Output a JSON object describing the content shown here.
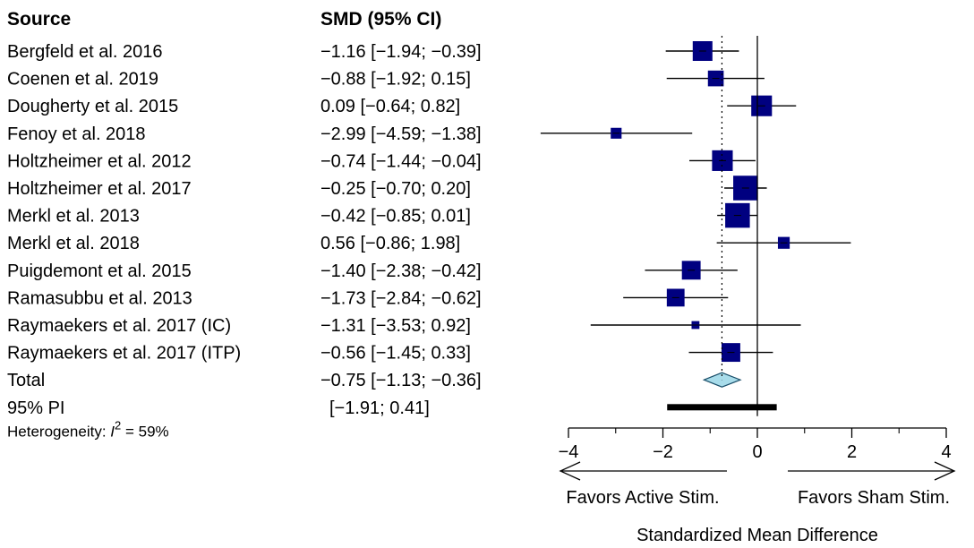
{
  "chart_data": {
    "type": "forest",
    "headers": {
      "study": "Source",
      "estimate": "SMD (95% CI)"
    },
    "studies": [
      {
        "label": "Bergfeld et al. 2016",
        "est": -1.16,
        "lo": -1.94,
        "hi": -0.39,
        "text": "−1.16 [−1.94; −0.39]",
        "weight": 1.0
      },
      {
        "label": "Coenen et al. 2019",
        "est": -0.88,
        "lo": -1.92,
        "hi": 0.15,
        "text": "−0.88 [−1.92;  0.15]",
        "weight": 0.8
      },
      {
        "label": "Dougherty et al. 2015",
        "est": 0.09,
        "lo": -0.64,
        "hi": 0.82,
        "text": "0.09 [−0.64;  0.82]",
        "weight": 1.05
      },
      {
        "label": "Fenoy et al. 2018",
        "est": -2.99,
        "lo": -4.59,
        "hi": -1.38,
        "text": "−2.99 [−4.59; −1.38]",
        "weight": 0.55
      },
      {
        "label": "Holtzheimer et al. 2012",
        "est": -0.74,
        "lo": -1.44,
        "hi": -0.04,
        "text": "−0.74 [−1.44; −0.04]",
        "weight": 1.05
      },
      {
        "label": "Holtzheimer et al. 2017",
        "est": -0.25,
        "lo": -0.7,
        "hi": 0.2,
        "text": "−0.25 [−0.70;  0.20]",
        "weight": 1.25
      },
      {
        "label": "Merkl et al. 2013",
        "est": -0.42,
        "lo": -0.85,
        "hi": 0.01,
        "text": "−0.42 [−0.85;  0.01]",
        "weight": 1.25
      },
      {
        "label": "Merkl et al. 2018",
        "est": 0.56,
        "lo": -0.86,
        "hi": 1.98,
        "text": "0.56 [−0.86;  1.98]",
        "weight": 0.6
      },
      {
        "label": "Puigdemont et al. 2015",
        "est": -1.4,
        "lo": -2.38,
        "hi": -0.42,
        "text": "−1.40 [−2.38; −0.42]",
        "weight": 0.95
      },
      {
        "label": "Ramasubbu et al. 2013",
        "est": -1.73,
        "lo": -2.84,
        "hi": -0.62,
        "text": "−1.73 [−2.84; −0.62]",
        "weight": 0.9
      },
      {
        "label": "Raymaekers et al. 2017 (IC)",
        "est": -1.31,
        "lo": -3.53,
        "hi": 0.92,
        "text": "−1.31 [−3.53;  0.92]",
        "weight": 0.4
      },
      {
        "label": "Raymaekers et al. 2017 (ITP)",
        "est": -0.56,
        "lo": -1.45,
        "hi": 0.33,
        "text": "−0.56 [−1.45;  0.33]",
        "weight": 0.95
      }
    ],
    "total": {
      "label": "Total",
      "est": -0.75,
      "lo": -1.13,
      "hi": -0.36,
      "text": "−0.75 [−1.13; −0.36]"
    },
    "prediction_interval": {
      "label": "95% PI",
      "lo": -1.91,
      "hi": 0.41,
      "text": "[−1.91;  0.41]"
    },
    "heterogeneity": {
      "prefix": "Heterogeneity: ",
      "symbol": "I",
      "superscript": "2",
      "suffix": " = 59%"
    },
    "x_axis": {
      "range": [
        -4,
        4
      ],
      "ticks": [
        -4,
        -2,
        0,
        2,
        4
      ],
      "tick_labels": [
        "−4",
        "−2",
        "0",
        "2",
        "4"
      ],
      "label": "Standardized Mean Difference"
    },
    "direction_labels": {
      "left": "Favors Active Stim.",
      "right": "Favors Sham Stim."
    },
    "colors": {
      "square": "#000080",
      "diamond": "#a8dcea",
      "pi_bar": "#000000",
      "line": "#000000"
    }
  }
}
